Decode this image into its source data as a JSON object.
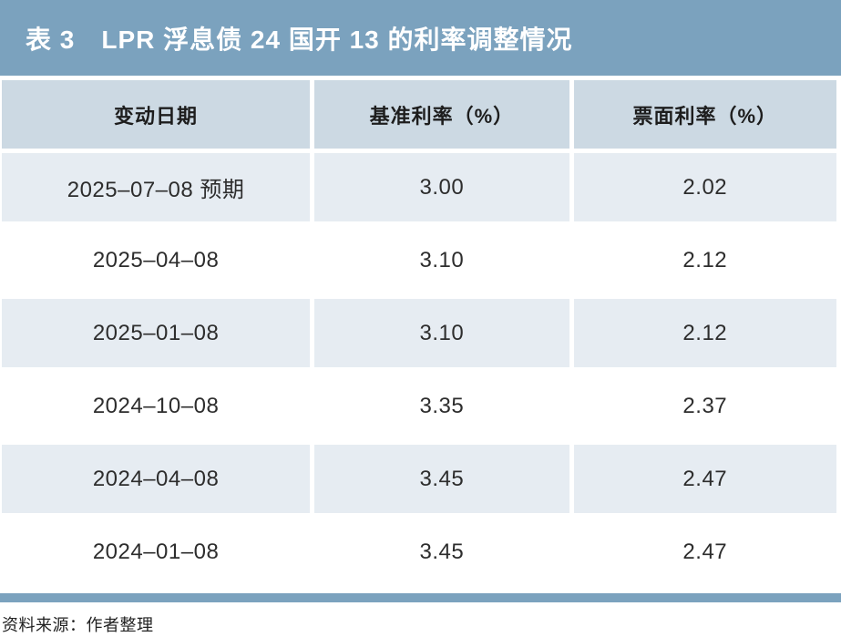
{
  "title": "表 3　LPR 浮息债 24 国开 13 的利率调整情况",
  "table": {
    "headers": [
      "变动日期",
      "基准利率（%）",
      "票面利率（%）"
    ],
    "rows": [
      [
        "2025–07–08 预期",
        "3.00",
        "2.02"
      ],
      [
        "2025–04–08",
        "3.10",
        "2.12"
      ],
      [
        "2025–01–08",
        "3.10",
        "2.12"
      ],
      [
        "2024–10–08",
        "3.35",
        "2.37"
      ],
      [
        "2024–04–08",
        "3.45",
        "2.47"
      ],
      [
        "2024–01–08",
        "3.45",
        "2.47"
      ]
    ]
  },
  "footer": {
    "source": "资料来源：作者整理"
  },
  "colors": {
    "accent": "#7BA2BE",
    "header_bg": "#CCD9E3",
    "row_shaded_bg": "#E6ECF2",
    "title_text": "#FFFFFF",
    "body_text": "#2D2D2D"
  }
}
